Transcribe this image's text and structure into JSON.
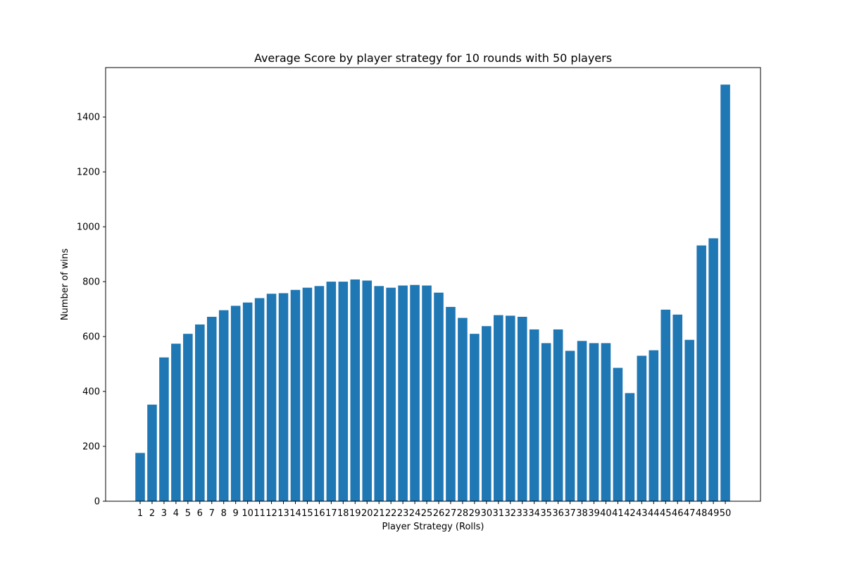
{
  "chart_data": {
    "type": "bar",
    "title": "Average Score by player strategy for 10 rounds with 50 players",
    "xlabel": "Player Strategy (Rolls)",
    "ylabel": "Number of wins",
    "ylim": [
      0,
      1580
    ],
    "yticks": [
      0,
      200,
      400,
      600,
      800,
      1000,
      1200,
      1400
    ],
    "grid": false,
    "legend": "none",
    "bar_color": "#1f77b4",
    "categories": [
      "1",
      "2",
      "3",
      "4",
      "5",
      "6",
      "7",
      "8",
      "9",
      "10",
      "11",
      "12",
      "13",
      "14",
      "15",
      "16",
      "17",
      "18",
      "19",
      "20",
      "21",
      "22",
      "23",
      "24",
      "25",
      "26",
      "27",
      "28",
      "29",
      "30",
      "31",
      "32",
      "33",
      "34",
      "35",
      "36",
      "37",
      "38",
      "39",
      "40",
      "41",
      "42",
      "43",
      "44",
      "45",
      "46",
      "47",
      "48",
      "49",
      "50"
    ],
    "values": [
      176,
      352,
      524,
      574,
      610,
      644,
      672,
      696,
      712,
      724,
      740,
      756,
      758,
      770,
      778,
      784,
      800,
      800,
      808,
      804,
      784,
      778,
      786,
      788,
      786,
      760,
      708,
      668,
      610,
      638,
      678,
      676,
      672,
      626,
      576,
      626,
      548,
      584,
      576,
      576,
      486,
      394,
      530,
      550,
      698,
      680,
      588,
      932,
      958,
      1518
    ]
  }
}
